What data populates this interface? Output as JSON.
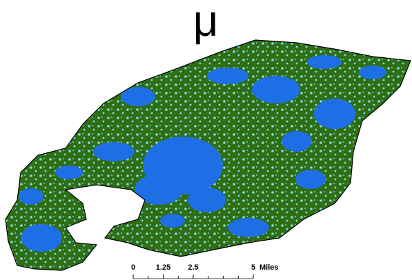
{
  "north_arrow": "μ",
  "scale_bar": {
    "ticks": [
      0,
      1.25,
      2.5,
      5
    ],
    "unit": "Miles"
  }
}
